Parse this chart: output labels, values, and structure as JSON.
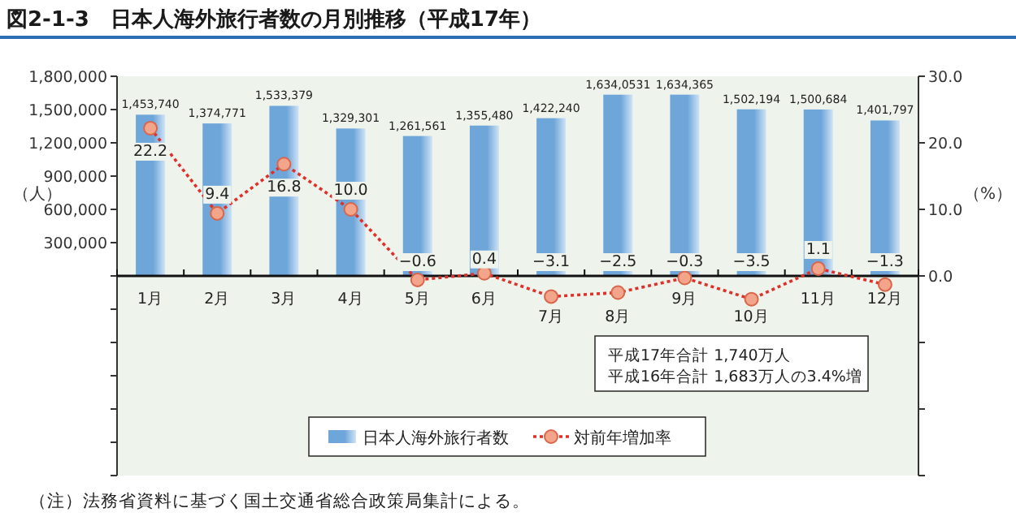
{
  "chart_data": {
    "type": "bar",
    "title": "図2-1-3　日本人海外旅行者数の月別推移（平成17年）",
    "categories": [
      "1月",
      "2月",
      "3月",
      "4月",
      "5月",
      "6月",
      "7月",
      "8月",
      "9月",
      "10月",
      "11月",
      "12月"
    ],
    "series": [
      {
        "name": "日本人海外旅行者数",
        "color": "#6fa6da",
        "values": [
          1453740,
          1374771,
          1533379,
          1329301,
          1261561,
          1355480,
          1422240,
          1634053,
          1634365,
          1502194,
          1500684,
          1401797
        ],
        "value_labels": [
          "1,453,740",
          "1,374,771",
          "1,533,379",
          "1,329,301",
          "1,261,561",
          "1,355,480",
          "1,422,240",
          "1,634,0531",
          "1,634,365",
          "1,502,194",
          "1,500,684",
          "1,401,797"
        ]
      },
      {
        "name": "対前年増加率",
        "type": "line",
        "axis": "y2",
        "color": "#e0302a",
        "values": [
          22.2,
          9.4,
          16.8,
          10.0,
          -0.6,
          0.4,
          -3.1,
          -2.5,
          -0.3,
          -3.5,
          1.1,
          -1.3
        ],
        "value_labels": [
          "22.2",
          "9.4",
          "16.8",
          "10.0",
          "−0.6",
          "0.4",
          "−3.1",
          "−2.5",
          "−0.3",
          "−3.5",
          "1.1",
          "−1.3"
        ]
      }
    ],
    "ylabel": "（人）",
    "y2label": "（%）",
    "ylim": [
      -1800000,
      1800000
    ],
    "yticks": [
      {
        "value": -1800000,
        "label": null
      },
      {
        "value": -1500000,
        "label": null
      },
      {
        "value": -1200000,
        "label": null
      },
      {
        "value": -900000,
        "label": null
      },
      {
        "value": -600000,
        "label": null
      },
      {
        "value": -300000,
        "label": null
      },
      {
        "value": 0,
        "label": null
      },
      {
        "value": 300000,
        "label": "300,000"
      },
      {
        "value": 600000,
        "label": "600,000"
      },
      {
        "value": 900000,
        "label": "900,000"
      },
      {
        "value": 1200000,
        "label": "1,200,000"
      },
      {
        "value": 1500000,
        "label": "1,500,000"
      },
      {
        "value": 1800000,
        "label": "1,800,000"
      }
    ],
    "y2lim": [
      -30,
      30
    ],
    "y2ticks": [
      {
        "value": -30,
        "label": null
      },
      {
        "value": -20,
        "label": null
      },
      {
        "value": -10,
        "label": null
      },
      {
        "value": 0,
        "label": "0.0"
      },
      {
        "value": 10,
        "label": "10.0"
      },
      {
        "value": 20,
        "label": "20.0"
      },
      {
        "value": 30,
        "label": "30.0"
      }
    ],
    "marker": "circle",
    "line_style": "dotted",
    "legend": "bottom",
    "annotations": [
      "平成17年合計 1,740万人",
      "平成16年合計 1,683万人の3.4%増",
      "（注）法務省資料に基づく国土交通省総合政策局集計による。"
    ]
  }
}
